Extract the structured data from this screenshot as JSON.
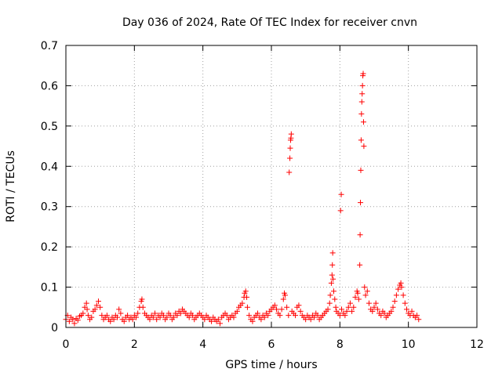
{
  "chart_data": {
    "type": "scatter",
    "title": "Day 036 of 2024, Rate Of TEC Index for receiver cnvn",
    "xlabel": "GPS time / hours",
    "ylabel": "ROTI / TECUs",
    "xlim": [
      0,
      12
    ],
    "ylim": [
      0,
      0.7
    ],
    "xticks": [
      "0",
      "2",
      "4",
      "6",
      "8",
      "10",
      "12"
    ],
    "yticks": [
      "0",
      "0.1",
      "0.2",
      "0.3",
      "0.4",
      "0.5",
      "0.6",
      "0.7"
    ],
    "grid": true,
    "marker": "+",
    "color": "#ff0000",
    "series": [
      {
        "points": [
          [
            0.0,
            0.02
          ],
          [
            0.05,
            0.03
          ],
          [
            0.1,
            0.015
          ],
          [
            0.15,
            0.025
          ],
          [
            0.2,
            0.02
          ],
          [
            0.25,
            0.01
          ],
          [
            0.3,
            0.022
          ],
          [
            0.35,
            0.018
          ],
          [
            0.4,
            0.028
          ],
          [
            0.45,
            0.03
          ],
          [
            0.5,
            0.035
          ],
          [
            0.55,
            0.05
          ],
          [
            0.6,
            0.06
          ],
          [
            0.62,
            0.045
          ],
          [
            0.65,
            0.03
          ],
          [
            0.7,
            0.02
          ],
          [
            0.75,
            0.025
          ],
          [
            0.8,
            0.04
          ],
          [
            0.85,
            0.045
          ],
          [
            0.9,
            0.055
          ],
          [
            0.95,
            0.065
          ],
          [
            1.0,
            0.05
          ],
          [
            1.05,
            0.03
          ],
          [
            1.1,
            0.02
          ],
          [
            1.15,
            0.025
          ],
          [
            1.2,
            0.03
          ],
          [
            1.25,
            0.02
          ],
          [
            1.3,
            0.015
          ],
          [
            1.35,
            0.025
          ],
          [
            1.4,
            0.02
          ],
          [
            1.45,
            0.03
          ],
          [
            1.5,
            0.025
          ],
          [
            1.55,
            0.045
          ],
          [
            1.6,
            0.035
          ],
          [
            1.65,
            0.02
          ],
          [
            1.7,
            0.015
          ],
          [
            1.75,
            0.025
          ],
          [
            1.8,
            0.03
          ],
          [
            1.85,
            0.02
          ],
          [
            1.9,
            0.025
          ],
          [
            1.95,
            0.02
          ],
          [
            2.0,
            0.03
          ],
          [
            2.05,
            0.025
          ],
          [
            2.1,
            0.035
          ],
          [
            2.15,
            0.05
          ],
          [
            2.2,
            0.065
          ],
          [
            2.22,
            0.07
          ],
          [
            2.25,
            0.05
          ],
          [
            2.3,
            0.035
          ],
          [
            2.35,
            0.03
          ],
          [
            2.4,
            0.025
          ],
          [
            2.45,
            0.02
          ],
          [
            2.5,
            0.03
          ],
          [
            2.55,
            0.025
          ],
          [
            2.6,
            0.035
          ],
          [
            2.65,
            0.02
          ],
          [
            2.7,
            0.03
          ],
          [
            2.75,
            0.025
          ],
          [
            2.8,
            0.035
          ],
          [
            2.85,
            0.03
          ],
          [
            2.9,
            0.02
          ],
          [
            2.95,
            0.025
          ],
          [
            3.0,
            0.035
          ],
          [
            3.05,
            0.03
          ],
          [
            3.1,
            0.02
          ],
          [
            3.15,
            0.025
          ],
          [
            3.2,
            0.035
          ],
          [
            3.25,
            0.03
          ],
          [
            3.3,
            0.04
          ],
          [
            3.35,
            0.035
          ],
          [
            3.4,
            0.045
          ],
          [
            3.45,
            0.04
          ],
          [
            3.5,
            0.035
          ],
          [
            3.55,
            0.03
          ],
          [
            3.6,
            0.025
          ],
          [
            3.65,
            0.035
          ],
          [
            3.7,
            0.03
          ],
          [
            3.75,
            0.02
          ],
          [
            3.8,
            0.025
          ],
          [
            3.85,
            0.03
          ],
          [
            3.9,
            0.035
          ],
          [
            3.95,
            0.03
          ],
          [
            4.0,
            0.025
          ],
          [
            4.05,
            0.02
          ],
          [
            4.1,
            0.03
          ],
          [
            4.15,
            0.025
          ],
          [
            4.2,
            0.02
          ],
          [
            4.25,
            0.015
          ],
          [
            4.3,
            0.025
          ],
          [
            4.35,
            0.02
          ],
          [
            4.4,
            0.015
          ],
          [
            4.45,
            0.02
          ],
          [
            4.5,
            0.01
          ],
          [
            4.55,
            0.025
          ],
          [
            4.6,
            0.03
          ],
          [
            4.65,
            0.035
          ],
          [
            4.7,
            0.03
          ],
          [
            4.75,
            0.02
          ],
          [
            4.8,
            0.025
          ],
          [
            4.85,
            0.03
          ],
          [
            4.9,
            0.025
          ],
          [
            4.95,
            0.035
          ],
          [
            5.0,
            0.04
          ],
          [
            5.05,
            0.05
          ],
          [
            5.1,
            0.055
          ],
          [
            5.15,
            0.06
          ],
          [
            5.2,
            0.075
          ],
          [
            5.22,
            0.085
          ],
          [
            5.25,
            0.09
          ],
          [
            5.28,
            0.075
          ],
          [
            5.3,
            0.05
          ],
          [
            5.35,
            0.03
          ],
          [
            5.4,
            0.02
          ],
          [
            5.45,
            0.015
          ],
          [
            5.5,
            0.025
          ],
          [
            5.55,
            0.03
          ],
          [
            5.6,
            0.035
          ],
          [
            5.65,
            0.025
          ],
          [
            5.7,
            0.02
          ],
          [
            5.75,
            0.03
          ],
          [
            5.8,
            0.025
          ],
          [
            5.85,
            0.035
          ],
          [
            5.9,
            0.03
          ],
          [
            5.95,
            0.04
          ],
          [
            6.0,
            0.045
          ],
          [
            6.05,
            0.05
          ],
          [
            6.1,
            0.055
          ],
          [
            6.15,
            0.045
          ],
          [
            6.2,
            0.035
          ],
          [
            6.25,
            0.03
          ],
          [
            6.3,
            0.045
          ],
          [
            6.35,
            0.07
          ],
          [
            6.38,
            0.085
          ],
          [
            6.4,
            0.08
          ],
          [
            6.45,
            0.05
          ],
          [
            6.5,
            0.03
          ],
          [
            6.52,
            0.385
          ],
          [
            6.54,
            0.42
          ],
          [
            6.55,
            0.445
          ],
          [
            6.56,
            0.465
          ],
          [
            6.57,
            0.47
          ],
          [
            6.58,
            0.48
          ],
          [
            6.6,
            0.04
          ],
          [
            6.65,
            0.035
          ],
          [
            6.7,
            0.03
          ],
          [
            6.75,
            0.05
          ],
          [
            6.8,
            0.055
          ],
          [
            6.85,
            0.04
          ],
          [
            6.9,
            0.03
          ],
          [
            6.95,
            0.025
          ],
          [
            7.0,
            0.02
          ],
          [
            7.05,
            0.03
          ],
          [
            7.1,
            0.025
          ],
          [
            7.15,
            0.02
          ],
          [
            7.2,
            0.03
          ],
          [
            7.25,
            0.025
          ],
          [
            7.3,
            0.035
          ],
          [
            7.35,
            0.03
          ],
          [
            7.4,
            0.02
          ],
          [
            7.45,
            0.025
          ],
          [
            7.5,
            0.03
          ],
          [
            7.55,
            0.035
          ],
          [
            7.6,
            0.04
          ],
          [
            7.65,
            0.045
          ],
          [
            7.7,
            0.06
          ],
          [
            7.72,
            0.08
          ],
          [
            7.75,
            0.11
          ],
          [
            7.77,
            0.13
          ],
          [
            7.78,
            0.155
          ],
          [
            7.79,
            0.185
          ],
          [
            7.8,
            0.12
          ],
          [
            7.82,
            0.09
          ],
          [
            7.85,
            0.07
          ],
          [
            7.88,
            0.05
          ],
          [
            7.9,
            0.04
          ],
          [
            7.95,
            0.035
          ],
          [
            8.0,
            0.03
          ],
          [
            8.02,
            0.29
          ],
          [
            8.04,
            0.33
          ],
          [
            8.05,
            0.045
          ],
          [
            8.1,
            0.035
          ],
          [
            8.15,
            0.03
          ],
          [
            8.2,
            0.04
          ],
          [
            8.25,
            0.05
          ],
          [
            8.3,
            0.06
          ],
          [
            8.35,
            0.04
          ],
          [
            8.4,
            0.05
          ],
          [
            8.45,
            0.075
          ],
          [
            8.5,
            0.09
          ],
          [
            8.52,
            0.085
          ],
          [
            8.55,
            0.07
          ],
          [
            8.58,
            0.155
          ],
          [
            8.59,
            0.23
          ],
          [
            8.6,
            0.31
          ],
          [
            8.61,
            0.39
          ],
          [
            8.62,
            0.465
          ],
          [
            8.63,
            0.53
          ],
          [
            8.64,
            0.56
          ],
          [
            8.65,
            0.58
          ],
          [
            8.66,
            0.6
          ],
          [
            8.67,
            0.625
          ],
          [
            8.68,
            0.63
          ],
          [
            8.69,
            0.51
          ],
          [
            8.7,
            0.45
          ],
          [
            8.72,
            0.1
          ],
          [
            8.75,
            0.08
          ],
          [
            8.8,
            0.09
          ],
          [
            8.85,
            0.06
          ],
          [
            8.9,
            0.045
          ],
          [
            8.95,
            0.04
          ],
          [
            9.0,
            0.05
          ],
          [
            9.05,
            0.06
          ],
          [
            9.1,
            0.045
          ],
          [
            9.15,
            0.035
          ],
          [
            9.2,
            0.03
          ],
          [
            9.25,
            0.04
          ],
          [
            9.3,
            0.035
          ],
          [
            9.35,
            0.025
          ],
          [
            9.4,
            0.03
          ],
          [
            9.45,
            0.035
          ],
          [
            9.5,
            0.04
          ],
          [
            9.55,
            0.05
          ],
          [
            9.6,
            0.065
          ],
          [
            9.65,
            0.08
          ],
          [
            9.7,
            0.095
          ],
          [
            9.75,
            0.105
          ],
          [
            9.78,
            0.11
          ],
          [
            9.8,
            0.1
          ],
          [
            9.85,
            0.08
          ],
          [
            9.9,
            0.06
          ],
          [
            9.95,
            0.045
          ],
          [
            10.0,
            0.035
          ],
          [
            10.05,
            0.03
          ],
          [
            10.1,
            0.04
          ],
          [
            10.15,
            0.03
          ],
          [
            10.2,
            0.025
          ],
          [
            10.25,
            0.03
          ],
          [
            10.3,
            0.02
          ]
        ]
      }
    ]
  }
}
